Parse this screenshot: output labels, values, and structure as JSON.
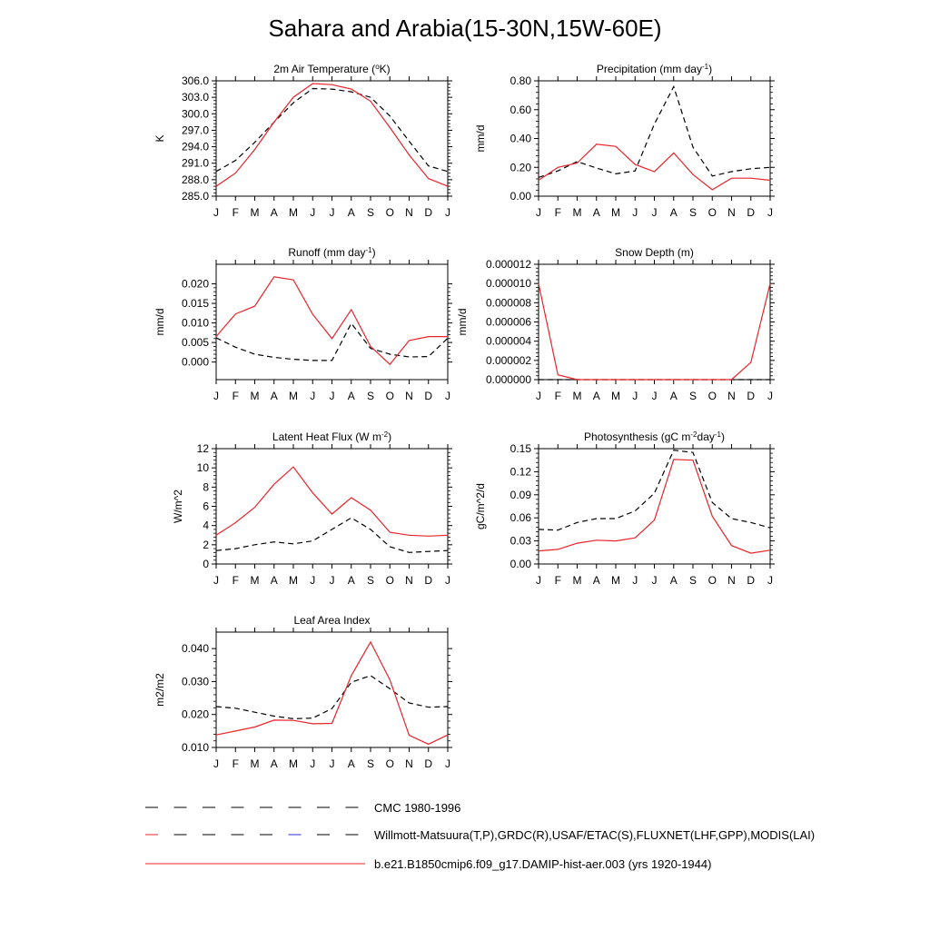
{
  "page": {
    "title": "Sahara and Arabia(15-30N,15W-60E)"
  },
  "legend": [
    {
      "label": "CMC 1980-1996",
      "style": "dash-black"
    },
    {
      "label": "Willmott-Matsuura(T,P),GRDC(R),USAF/ETAC(S),FLUXNET(LHF,GPP),MODIS(LAI)",
      "style": "dash-multi"
    },
    {
      "label": "b.e21.B1850cmip6.f09_g17.DAMIP-hist-aer.003 (yrs 1920-1944)",
      "style": "solid-red"
    }
  ],
  "colors": {
    "model": "#e8242a",
    "obs": "#000000",
    "axis": "#000000"
  },
  "chart_data": [
    {
      "type": "line",
      "title": "2m Air Temperature (",
      "title_sup": "o",
      "title_after": "K)",
      "ylabel": "K",
      "categories": [
        "J",
        "F",
        "M",
        "A",
        "M",
        "J",
        "J",
        "A",
        "S",
        "O",
        "N",
        "D",
        "J"
      ],
      "ylim": [
        285.0,
        306.0
      ],
      "yticks": [
        285.0,
        288.0,
        291.0,
        294.0,
        297.0,
        300.0,
        303.0,
        306.0
      ],
      "ytick_labels": [
        "285.0",
        "288.0",
        "291.0",
        "294.0",
        "297.0",
        "300.0",
        "303.0",
        "306.0"
      ],
      "series": [
        {
          "role": "model",
          "values": [
            286.8,
            289.2,
            293.5,
            298.5,
            303.0,
            305.5,
            305.3,
            304.5,
            302.3,
            297.5,
            292.5,
            288.2,
            286.8
          ]
        },
        {
          "role": "obs",
          "values": [
            289.5,
            291.5,
            294.8,
            298.5,
            302.0,
            304.6,
            304.5,
            304.0,
            303.0,
            299.6,
            295.0,
            290.5,
            289.5
          ]
        }
      ]
    },
    {
      "type": "line",
      "title": "Precipitation (mm day",
      "title_sup": "-1",
      "title_after": ")",
      "ylabel": "mm/d",
      "categories": [
        "J",
        "F",
        "M",
        "A",
        "M",
        "J",
        "J",
        "A",
        "S",
        "O",
        "N",
        "D",
        "J"
      ],
      "ylim": [
        0.0,
        0.8
      ],
      "yticks": [
        0.0,
        0.2,
        0.4,
        0.6,
        0.8
      ],
      "ytick_labels": [
        "0.00",
        "0.20",
        "0.40",
        "0.60",
        "0.80"
      ],
      "series": [
        {
          "role": "model",
          "values": [
            0.11,
            0.2,
            0.23,
            0.36,
            0.345,
            0.22,
            0.17,
            0.3,
            0.15,
            0.045,
            0.125,
            0.125,
            0.11
          ]
        },
        {
          "role": "obs",
          "values": [
            0.13,
            0.175,
            0.24,
            0.195,
            0.155,
            0.175,
            0.5,
            0.76,
            0.34,
            0.14,
            0.17,
            0.19,
            0.2
          ]
        }
      ]
    },
    {
      "type": "line",
      "title": "Runoff (mm day",
      "title_sup": "-1",
      "title_after": ")",
      "ylabel": "mm/d",
      "categories": [
        "J",
        "F",
        "M",
        "A",
        "M",
        "J",
        "J",
        "A",
        "S",
        "O",
        "N",
        "D",
        "J"
      ],
      "ylim": [
        -0.0045,
        0.025
      ],
      "yticks": [
        0.0,
        0.005,
        0.01,
        0.015,
        0.02
      ],
      "ytick_labels": [
        "0.000",
        "0.005",
        "0.010",
        "0.015",
        "0.020"
      ],
      "series": [
        {
          "role": "model",
          "values": [
            0.0065,
            0.0123,
            0.0143,
            0.0218,
            0.021,
            0.0122,
            0.006,
            0.0134,
            0.004,
            -0.0006,
            0.0055,
            0.0065,
            0.0065
          ]
        },
        {
          "role": "obs",
          "values": [
            0.0062,
            0.0038,
            0.002,
            0.0012,
            0.0007,
            0.0004,
            0.0004,
            0.0099,
            0.0035,
            0.002,
            0.0013,
            0.0014,
            0.0061
          ]
        }
      ]
    },
    {
      "type": "line",
      "title": "Snow Depth (m)",
      "title_sup": "",
      "title_after": "",
      "ylabel": "mm/d",
      "categories": [
        "J",
        "F",
        "M",
        "A",
        "M",
        "J",
        "J",
        "A",
        "S",
        "O",
        "N",
        "D",
        "J"
      ],
      "ylim": [
        0.0,
        1.2e-05
      ],
      "yticks": [
        0.0,
        2e-06,
        4e-06,
        6e-06,
        8e-06,
        1e-05,
        1.2e-05
      ],
      "ytick_labels": [
        "0.000000",
        "0.000002",
        "0.000004",
        "0.000006",
        "0.000008",
        "0.000010",
        "0.000012"
      ],
      "series": [
        {
          "role": "model",
          "values": [
            1e-05,
            5e-07,
            0.0,
            0.0,
            0.0,
            0.0,
            0.0,
            0.0,
            0.0,
            0.0,
            0.0,
            1.8e-06,
            1e-05
          ]
        },
        {
          "role": "obs",
          "values": [
            0.0,
            0.0,
            0.0,
            0.0,
            0.0,
            0.0,
            0.0,
            0.0,
            0.0,
            0.0,
            0.0,
            0.0,
            0.0
          ]
        }
      ]
    },
    {
      "type": "line",
      "title": "Latent Heat Flux (W m",
      "title_sup": "-2",
      "title_after": ")",
      "ylabel": "W/m^2",
      "categories": [
        "J",
        "F",
        "M",
        "A",
        "M",
        "J",
        "J",
        "A",
        "S",
        "O",
        "N",
        "D",
        "J"
      ],
      "ylim": [
        0,
        12
      ],
      "yticks": [
        0,
        2,
        4,
        6,
        8,
        10,
        12
      ],
      "ytick_labels": [
        "0",
        "2",
        "4",
        "6",
        "8",
        "10",
        "12"
      ],
      "series": [
        {
          "role": "model",
          "values": [
            3.0,
            4.3,
            5.9,
            8.3,
            10.1,
            7.4,
            5.2,
            6.9,
            5.6,
            3.3,
            3.0,
            2.9,
            3.0
          ]
        },
        {
          "role": "obs",
          "values": [
            1.4,
            1.6,
            2.0,
            2.3,
            2.1,
            2.4,
            3.6,
            4.8,
            3.6,
            1.8,
            1.2,
            1.3,
            1.4
          ]
        }
      ]
    },
    {
      "type": "line",
      "title": "Photosynthesis (gC m",
      "title_sup": "-2",
      "title_after": "day",
      "title_sup2": "-1",
      "title_after2": ")",
      "ylabel": "gC/m^2/d",
      "categories": [
        "J",
        "F",
        "M",
        "A",
        "M",
        "J",
        "J",
        "A",
        "S",
        "O",
        "N",
        "D",
        "J"
      ],
      "ylim": [
        0.0,
        0.15
      ],
      "yticks": [
        0.0,
        0.03,
        0.06,
        0.09,
        0.12,
        0.15
      ],
      "ytick_labels": [
        "0.00",
        "0.03",
        "0.06",
        "0.09",
        "0.12",
        "0.15"
      ],
      "series": [
        {
          "role": "model",
          "values": [
            0.017,
            0.019,
            0.027,
            0.031,
            0.03,
            0.034,
            0.057,
            0.136,
            0.135,
            0.062,
            0.024,
            0.014,
            0.018
          ]
        },
        {
          "role": "obs",
          "values": [
            0.045,
            0.044,
            0.054,
            0.059,
            0.059,
            0.069,
            0.092,
            0.148,
            0.145,
            0.08,
            0.059,
            0.054,
            0.047
          ]
        }
      ]
    },
    {
      "type": "line",
      "title": "Leaf Area Index",
      "title_sup": "",
      "title_after": "",
      "ylabel": "m2/m2",
      "categories": [
        "J",
        "F",
        "M",
        "A",
        "M",
        "J",
        "J",
        "A",
        "S",
        "O",
        "N",
        "D",
        "J"
      ],
      "ylim": [
        0.01,
        0.045
      ],
      "yticks": [
        0.01,
        0.02,
        0.03,
        0.04
      ],
      "ytick_labels": [
        "0.010",
        "0.020",
        "0.030",
        "0.040"
      ],
      "series": [
        {
          "role": "model",
          "values": [
            0.0138,
            0.015,
            0.0162,
            0.0183,
            0.0182,
            0.0172,
            0.0173,
            0.0318,
            0.042,
            0.0305,
            0.0137,
            0.011,
            0.0138
          ]
        },
        {
          "role": "obs",
          "values": [
            0.0224,
            0.0219,
            0.0207,
            0.0195,
            0.0187,
            0.0189,
            0.0218,
            0.0298,
            0.0318,
            0.0278,
            0.0235,
            0.0222,
            0.0224
          ]
        }
      ]
    }
  ]
}
